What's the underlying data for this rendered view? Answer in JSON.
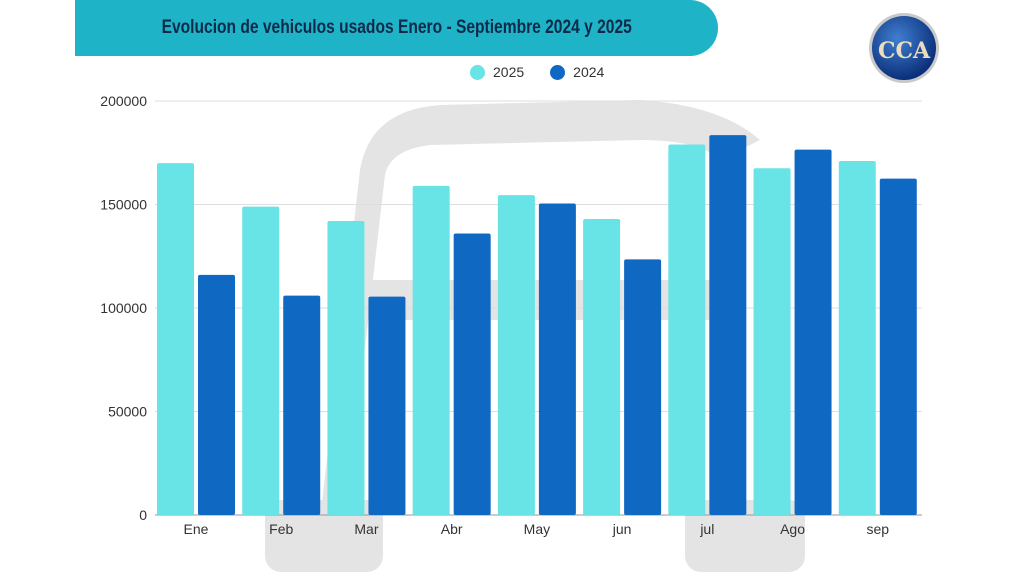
{
  "header": {
    "title": "Evolucion de vehiculos usados Enero - Septiembre 2024 y 2025"
  },
  "logo": {
    "initials": "CCA",
    "ring_text": "CAMARA DEL COMERCIO AUTOMOTOR"
  },
  "colors": {
    "banner": "#1fb3c7",
    "s2025": "#68e3e6",
    "s2024": "#0f69c2",
    "watermark": "#e3e3e3"
  },
  "chart_data": {
    "type": "bar",
    "title": "Evolucion de vehiculos usados Enero - Septiembre 2024 y 2025",
    "xlabel": "",
    "ylabel": "",
    "categories": [
      "Ene",
      "Feb",
      "Mar",
      "Abr",
      "May",
      "jun",
      "jul",
      "Ago",
      "sep"
    ],
    "series": [
      {
        "name": "2025",
        "values": [
          170000,
          149000,
          142000,
          159000,
          154500,
          143000,
          179000,
          167500,
          171000
        ]
      },
      {
        "name": "2024",
        "values": [
          116000,
          106000,
          105500,
          136000,
          150500,
          123500,
          183500,
          176500,
          162500
        ]
      }
    ],
    "ylim": [
      0,
      200000
    ],
    "yticks": [
      "0",
      "50000",
      "100000",
      "150000",
      "200000"
    ],
    "grid": true,
    "legend": "top-center"
  }
}
